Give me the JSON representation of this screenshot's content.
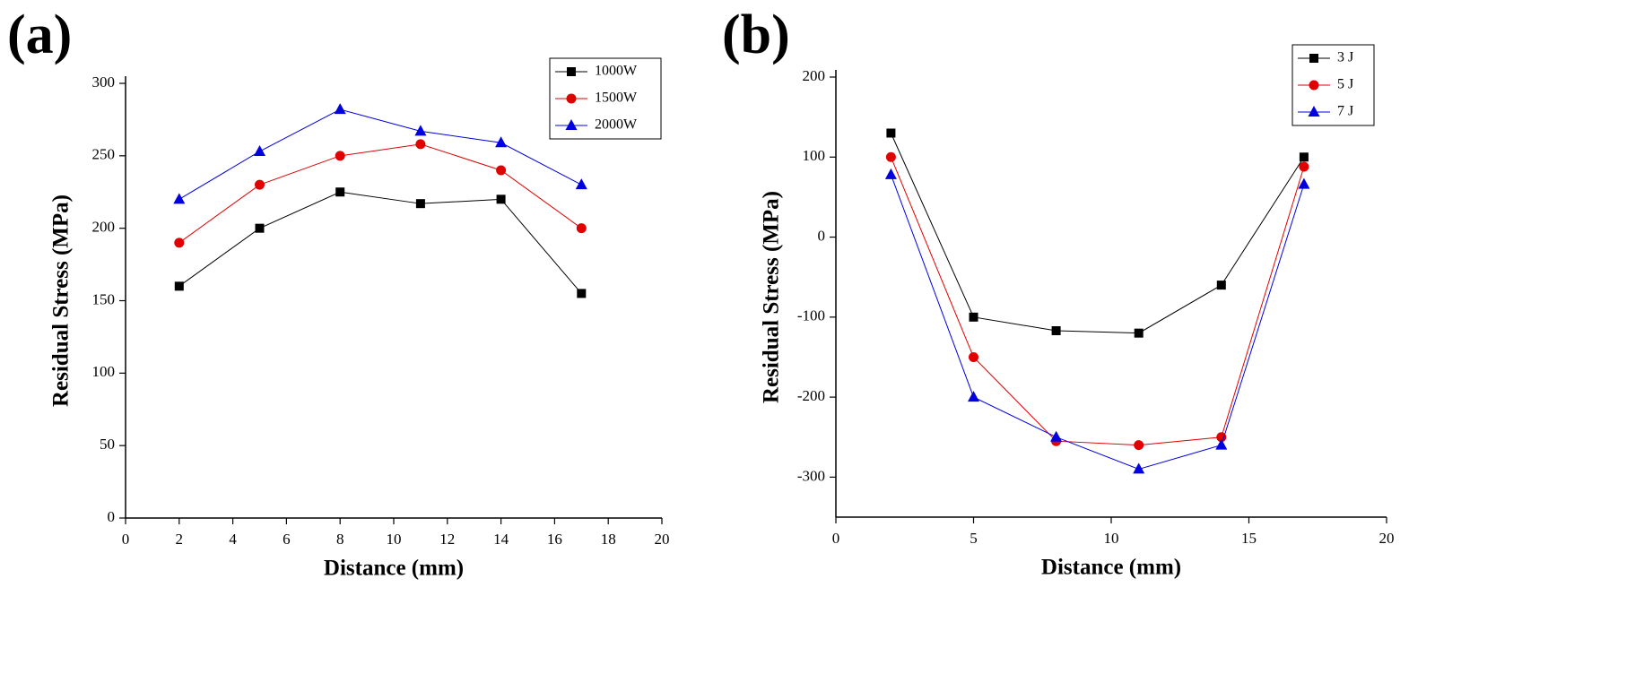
{
  "chart_data": [
    {
      "type": "line",
      "title": "(a)",
      "x_label": "Distance (mm)",
      "y_label": "Residual Stress (MPa)",
      "x": [
        2,
        5,
        8,
        11,
        14,
        17
      ],
      "series": [
        {
          "name": "1000W",
          "color": "#000000",
          "marker": "square",
          "values": [
            160,
            200,
            225,
            217,
            220,
            155
          ]
        },
        {
          "name": "1500W",
          "color": "#e00000",
          "marker": "circle",
          "values": [
            190,
            230,
            250,
            258,
            240,
            200
          ]
        },
        {
          "name": "2000W",
          "color": "#0000e0",
          "marker": "triangle",
          "values": [
            220,
            253,
            282,
            267,
            259,
            230
          ]
        }
      ],
      "xlim": [
        0,
        20
      ],
      "xticks": [
        0,
        2,
        4,
        6,
        8,
        10,
        12,
        14,
        16,
        18,
        20
      ],
      "ylim": [
        0,
        300
      ],
      "yticks": [
        0,
        50,
        100,
        150,
        200,
        250,
        300
      ],
      "legend": "upper right"
    },
    {
      "type": "line",
      "title": "(b)",
      "x_label": "Distance (mm)",
      "y_label": "Residual Stress (MPa)",
      "x": [
        2,
        5,
        8,
        11,
        14,
        17
      ],
      "series": [
        {
          "name": "3 J",
          "color": "#000000",
          "marker": "square",
          "values": [
            130,
            -100,
            -117,
            -120,
            -60,
            100
          ]
        },
        {
          "name": "5 J",
          "color": "#e00000",
          "marker": "circle",
          "values": [
            100,
            -150,
            -255,
            -260,
            -250,
            88
          ]
        },
        {
          "name": "7 J",
          "color": "#0000e0",
          "marker": "triangle",
          "values": [
            78,
            -200,
            -250,
            -290,
            -260,
            66
          ]
        }
      ],
      "xlim": [
        0,
        20
      ],
      "xticks": [
        0,
        5,
        10,
        15,
        20
      ],
      "ylim": [
        -350,
        200
      ],
      "yticks": [
        -300,
        -200,
        -100,
        0,
        100,
        200
      ],
      "legend": "upper right"
    }
  ]
}
